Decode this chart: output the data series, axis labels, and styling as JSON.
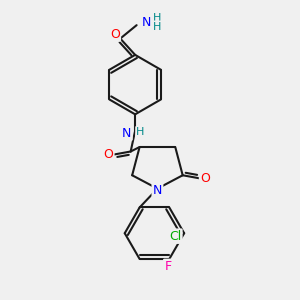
{
  "bg_color": "#f0f0f0",
  "bond_color": "#1a1a1a",
  "bond_width": 1.5,
  "atom_colors": {
    "C": "#1a1a1a",
    "N": "#0000ff",
    "O": "#ff0000",
    "Cl": "#00aa00",
    "F": "#ff00aa",
    "H": "#008888"
  },
  "font_size": 9,
  "title": ""
}
